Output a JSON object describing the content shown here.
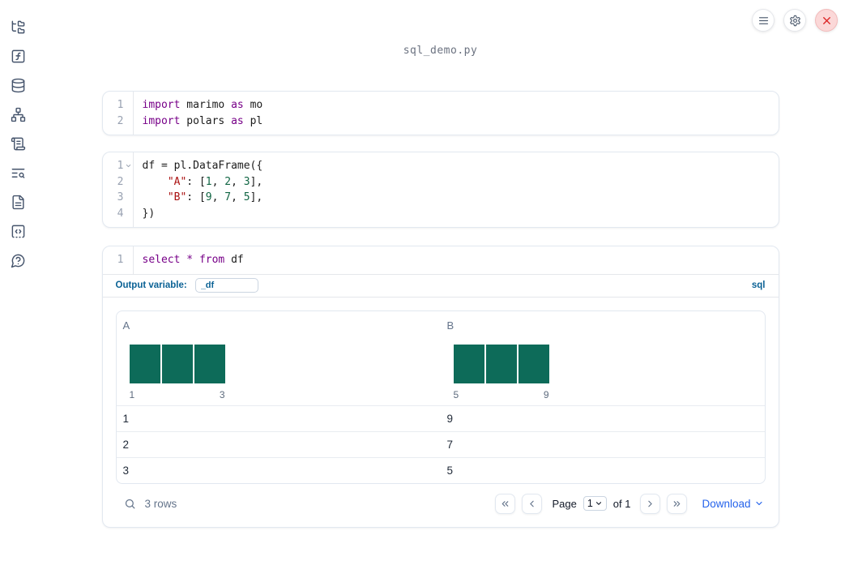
{
  "window": {
    "title": "sql_demo.py"
  },
  "colors": {
    "keyword": "#770088",
    "string": "#aa1111",
    "number": "#116644",
    "histogram_bar": "#0d6b59",
    "sql_blue": "#0b6295",
    "link_blue": "#2563eb"
  },
  "header": {
    "buttons": [
      {
        "label": "menu",
        "icon": "hamburger-icon"
      },
      {
        "label": "settings",
        "icon": "gear-icon"
      },
      {
        "label": "shutdown",
        "icon": "close-icon"
      }
    ]
  },
  "sidebar": {
    "items": [
      {
        "label": "file-explorer",
        "icon": "folder-tree-icon"
      },
      {
        "label": "functions",
        "icon": "function-square-icon"
      },
      {
        "label": "data-sources",
        "icon": "database-icon"
      },
      {
        "label": "dependencies",
        "icon": "network-icon"
      },
      {
        "label": "logs",
        "icon": "scroll-icon"
      },
      {
        "label": "outline",
        "icon": "list-search-icon"
      },
      {
        "label": "documentation",
        "icon": "file-text-icon"
      },
      {
        "label": "snippets",
        "icon": "code-square-icon"
      },
      {
        "label": "help",
        "icon": "help-circle-icon"
      }
    ]
  },
  "cells": [
    {
      "kind": "python",
      "lines": [
        {
          "n": "1",
          "fold": false,
          "tokens": [
            [
              "kw",
              "import"
            ],
            [
              "pl",
              " marimo "
            ],
            [
              "kw",
              "as"
            ],
            [
              "pl",
              " mo"
            ]
          ]
        },
        {
          "n": "2",
          "fold": false,
          "tokens": [
            [
              "kw",
              "import"
            ],
            [
              "pl",
              " polars "
            ],
            [
              "kw",
              "as"
            ],
            [
              "pl",
              " pl"
            ]
          ]
        }
      ]
    },
    {
      "kind": "python",
      "lines": [
        {
          "n": "1",
          "fold": true,
          "tokens": [
            [
              "pl",
              "df = pl.DataFrame({"
            ]
          ]
        },
        {
          "n": "2",
          "fold": false,
          "tokens": [
            [
              "pl",
              "    "
            ],
            [
              "str",
              "\"A\""
            ],
            [
              "pl",
              ": ["
            ],
            [
              "num",
              "1"
            ],
            [
              "pl",
              ", "
            ],
            [
              "num",
              "2"
            ],
            [
              "pl",
              ", "
            ],
            [
              "num",
              "3"
            ],
            [
              "pl",
              "],"
            ]
          ]
        },
        {
          "n": "3",
          "fold": false,
          "tokens": [
            [
              "pl",
              "    "
            ],
            [
              "str",
              "\"B\""
            ],
            [
              "pl",
              ": ["
            ],
            [
              "num",
              "9"
            ],
            [
              "pl",
              ", "
            ],
            [
              "num",
              "7"
            ],
            [
              "pl",
              ", "
            ],
            [
              "num",
              "5"
            ],
            [
              "pl",
              "],"
            ]
          ]
        },
        {
          "n": "4",
          "fold": false,
          "tokens": [
            [
              "pl",
              "})"
            ]
          ]
        }
      ]
    },
    {
      "kind": "sql",
      "lines": [
        {
          "n": "1",
          "fold": false,
          "tokens": [
            [
              "kw",
              "select"
            ],
            [
              "pl",
              " "
            ],
            [
              "kw",
              "*"
            ],
            [
              "pl",
              " "
            ],
            [
              "kw",
              "from"
            ],
            [
              "pl",
              " df"
            ]
          ]
        }
      ]
    }
  ],
  "sql_meta": {
    "output_variable_label": "Output variable:",
    "output_variable_value": "_df",
    "language_badge": "sql"
  },
  "table": {
    "columns": [
      {
        "name": "A",
        "histogram": {
          "bar_counts": [
            1,
            1,
            1
          ],
          "min_label": "1",
          "max_label": "3"
        }
      },
      {
        "name": "B",
        "histogram": {
          "bar_counts": [
            1,
            1,
            1
          ],
          "min_label": "5",
          "max_label": "9"
        }
      }
    ],
    "rows": [
      [
        "1",
        "9"
      ],
      [
        "2",
        "7"
      ],
      [
        "3",
        "5"
      ]
    ],
    "footer": {
      "row_count": "3 rows",
      "page_label": "Page",
      "page_value": "1",
      "of_label": "of 1",
      "download_label": "Download"
    }
  }
}
